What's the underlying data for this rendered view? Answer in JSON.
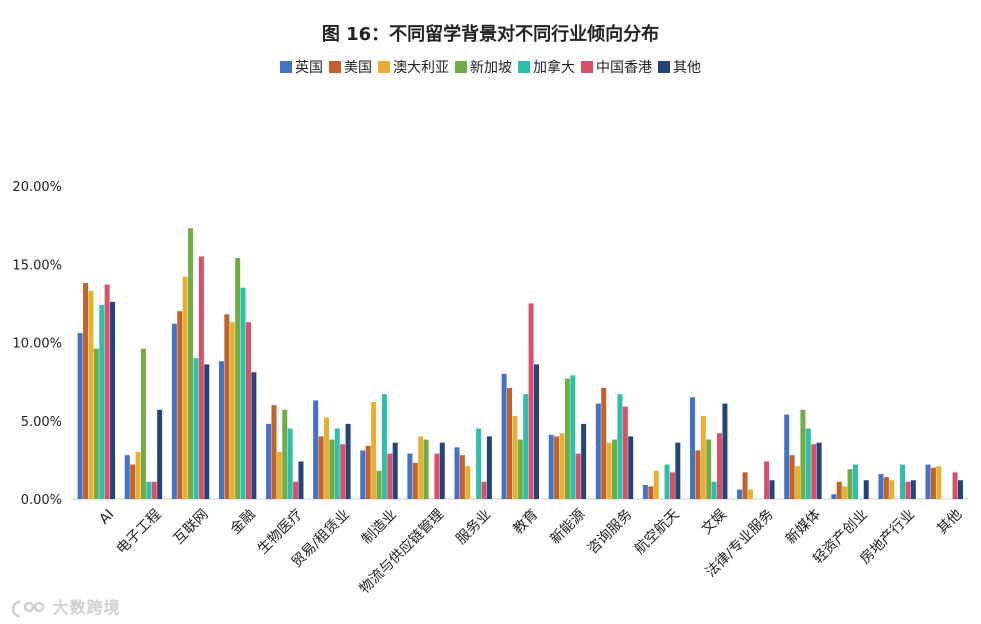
{
  "chart_data": {
    "type": "bar",
    "title": "图 16：不同留学背景对不同行业倾向分布",
    "ylim": [
      0,
      20
    ],
    "yticks": [
      "20.00%",
      "15.00%",
      "10.00%",
      "5.00%",
      "0.00%"
    ],
    "ytick_values": [
      20,
      15,
      10,
      5,
      0
    ],
    "legend_position": "top",
    "categories": [
      "AI",
      "电子工程",
      "互联网",
      "金融",
      "生物医疗",
      "贸易/租赁业",
      "制造业",
      "物流与供应链管理",
      "服务业",
      "教育",
      "新能源",
      "咨询服务",
      "航空航天",
      "文娱",
      "法律/专业服务",
      "新媒体",
      "轻资产创业",
      "房地产行业",
      "其他"
    ],
    "series": [
      {
        "name": "英国",
        "color": "#4472c4",
        "values": [
          10.6,
          2.8,
          11.2,
          8.8,
          4.8,
          6.3,
          3.1,
          2.9,
          3.3,
          8.0,
          4.1,
          6.1,
          0.9,
          6.5,
          0.6,
          5.4,
          0.3,
          1.6,
          2.2
        ]
      },
      {
        "name": "美国",
        "color": "#c0622a",
        "values": [
          13.8,
          2.2,
          12.0,
          11.8,
          6.0,
          4.0,
          3.4,
          2.3,
          2.8,
          7.1,
          4.0,
          7.1,
          0.8,
          3.1,
          1.7,
          2.8,
          1.1,
          1.4,
          2.0
        ]
      },
      {
        "name": "澳大利亚",
        "color": "#e8b032",
        "values": [
          13.3,
          3.0,
          14.2,
          11.3,
          3.0,
          5.2,
          6.2,
          4.0,
          2.1,
          5.3,
          4.2,
          3.6,
          1.8,
          5.3,
          0.6,
          2.1,
          0.8,
          1.2,
          2.1
        ]
      },
      {
        "name": "新加坡",
        "color": "#70ad47",
        "values": [
          9.6,
          9.6,
          17.3,
          15.4,
          5.7,
          3.8,
          1.8,
          3.8,
          0.0,
          3.8,
          7.7,
          3.8,
          0.0,
          3.8,
          0.0,
          5.7,
          1.9,
          0.0,
          0.0
        ]
      },
      {
        "name": "加拿大",
        "color": "#2ebfac",
        "values": [
          12.4,
          1.1,
          9.0,
          13.5,
          4.5,
          4.5,
          6.7,
          0.0,
          4.5,
          6.7,
          7.9,
          6.7,
          2.2,
          1.1,
          0.0,
          4.5,
          2.2,
          2.2,
          0.0
        ]
      },
      {
        "name": "中国香港",
        "color": "#d9506a",
        "values": [
          13.7,
          1.1,
          15.5,
          11.3,
          1.1,
          3.5,
          2.9,
          2.9,
          1.1,
          12.5,
          2.9,
          5.9,
          1.7,
          4.2,
          2.4,
          3.5,
          0.0,
          1.1,
          1.7
        ]
      },
      {
        "name": "其他",
        "color": "#24447a",
        "values": [
          12.6,
          5.7,
          8.6,
          8.1,
          2.4,
          4.8,
          3.6,
          3.6,
          4.0,
          8.6,
          4.8,
          4.0,
          3.6,
          6.1,
          1.2,
          3.6,
          1.2,
          1.2,
          1.2
        ]
      }
    ]
  },
  "watermark": {
    "text": "大数跨境",
    "icon": "logo-icon"
  }
}
